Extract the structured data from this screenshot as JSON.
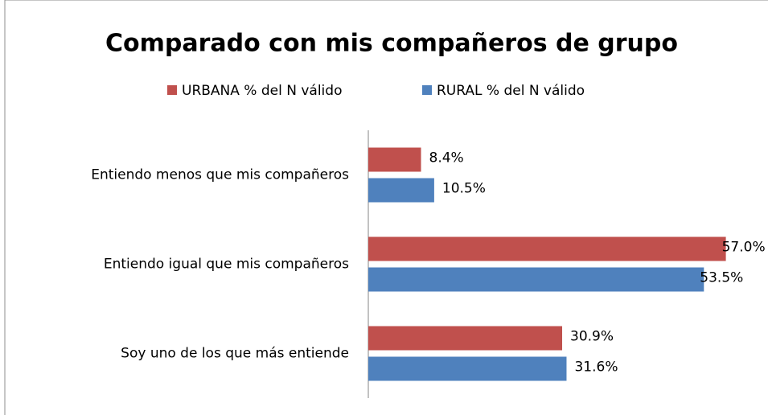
{
  "chart_data": {
    "type": "bar",
    "orientation": "horizontal",
    "title": "Comparado con mis compañeros de grupo",
    "categories": [
      "Entiendo menos que mis compañeros",
      "Entiendo igual que mis compañeros",
      "Soy uno de los que más entiende"
    ],
    "series": [
      {
        "name": "URBANA % del N válido",
        "color": "#c0504d",
        "values": [
          8.4,
          57.0,
          30.9
        ],
        "value_labels": [
          "8.4%",
          "57.0%",
          "30.9%"
        ]
      },
      {
        "name": "RURAL % del N válido",
        "color": "#4f81bd",
        "values": [
          10.5,
          53.5,
          31.6
        ],
        "value_labels": [
          "10.5%",
          "53.5%",
          "31.6%"
        ]
      }
    ],
    "legend": "top"
  }
}
